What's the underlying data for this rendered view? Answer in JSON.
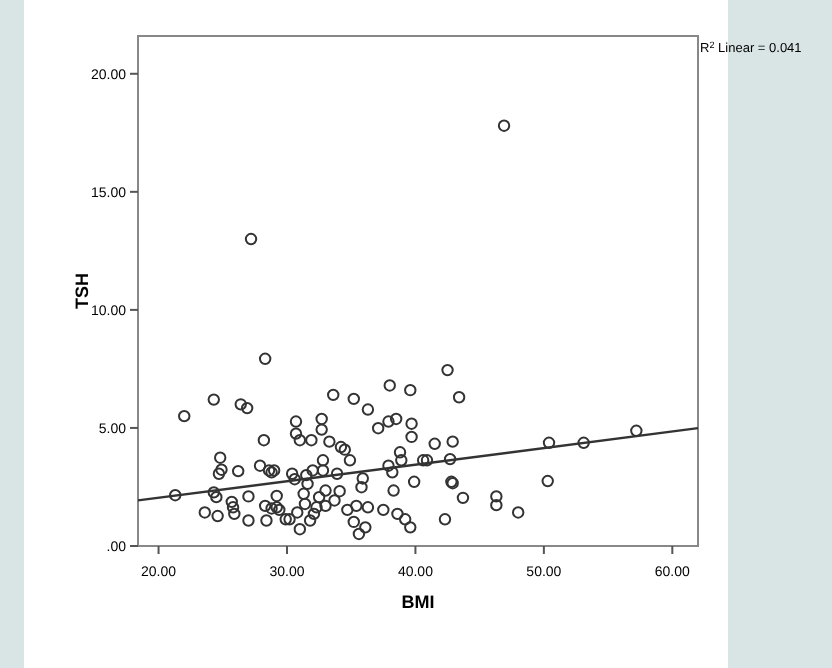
{
  "chart_data": {
    "type": "scatter",
    "xlabel": "BMI",
    "ylabel": "TSH",
    "xlim": [
      18.4,
      62
    ],
    "ylim": [
      0,
      21.6
    ],
    "xticks": [
      {
        "value": 20,
        "label": "20.00"
      },
      {
        "value": 30,
        "label": "30.00"
      },
      {
        "value": 40,
        "label": "40.00"
      },
      {
        "value": 50,
        "label": "50.00"
      },
      {
        "value": 60,
        "label": "60.00"
      }
    ],
    "yticks": [
      {
        "value": 0,
        "label": ".00"
      },
      {
        "value": 5,
        "label": "5.00"
      },
      {
        "value": 10,
        "label": "10.00"
      },
      {
        "value": 15,
        "label": "15.00"
      },
      {
        "value": 20,
        "label": "20.00"
      }
    ],
    "grid": false,
    "marker": "circle",
    "annotations": [
      "R$^{2}$ Linear = 0.041"
    ],
    "series": [
      {
        "color": "#333333",
        "x": [
          21.3,
          22.0,
          23.6,
          24.3,
          24.3,
          24.5,
          24.6,
          24.7,
          24.8,
          24.9,
          25.7,
          25.8,
          25.9,
          26.2,
          26.4,
          26.9,
          27.0,
          27.0,
          27.2,
          27.9,
          28.2,
          28.3,
          28.3,
          28.4,
          28.6,
          28.8,
          29.0,
          28.8,
          29.2,
          29.2,
          29.4,
          29.9,
          30.2,
          30.4,
          30.6,
          30.7,
          30.7,
          30.8,
          31.0,
          31.0,
          31.3,
          31.4,
          31.5,
          31.6,
          31.8,
          31.9,
          32.0,
          32.1,
          32.3,
          32.5,
          32.7,
          32.7,
          32.8,
          32.8,
          33.0,
          33.0,
          33.3,
          33.6,
          33.7,
          33.9,
          34.1,
          34.2,
          34.5,
          34.7,
          34.9,
          35.2,
          35.2,
          35.4,
          35.6,
          35.8,
          35.9,
          36.1,
          36.3,
          36.3,
          37.1,
          37.5,
          37.9,
          37.9,
          38.0,
          38.2,
          38.3,
          38.5,
          38.6,
          38.8,
          38.9,
          39.2,
          39.6,
          39.6,
          39.7,
          39.7,
          39.9,
          40.6,
          40.9,
          41.5,
          42.3,
          42.5,
          42.7,
          42.8,
          42.9,
          43.4,
          42.9,
          43.7,
          46.3,
          46.3,
          48.0,
          50.4,
          50.3,
          53.1,
          57.2,
          46.9
        ],
        "values": [
          2.15,
          5.5,
          1.42,
          6.2,
          2.27,
          2.07,
          1.27,
          3.06,
          3.74,
          3.23,
          1.87,
          1.64,
          1.36,
          3.17,
          6.0,
          5.84,
          2.1,
          1.08,
          13.0,
          3.4,
          4.48,
          7.93,
          1.7,
          1.08,
          3.2,
          3.12,
          3.2,
          1.59,
          2.12,
          1.64,
          1.53,
          1.13,
          1.13,
          3.06,
          2.83,
          5.27,
          4.76,
          1.42,
          4.48,
          0.71,
          2.21,
          1.78,
          3.0,
          2.63,
          1.08,
          4.48,
          3.2,
          1.36,
          1.64,
          2.07,
          5.38,
          4.93,
          3.63,
          3.2,
          2.35,
          1.7,
          4.42,
          6.4,
          1.93,
          3.06,
          2.32,
          4.19,
          4.08,
          1.53,
          3.63,
          6.23,
          1.02,
          1.7,
          0.51,
          2.49,
          2.86,
          0.79,
          1.64,
          5.78,
          4.99,
          1.53,
          3.4,
          5.27,
          6.8,
          3.12,
          2.35,
          5.38,
          1.36,
          3.97,
          3.63,
          1.13,
          6.6,
          0.79,
          5.18,
          4.62,
          2.72,
          3.63,
          3.63,
          4.33,
          1.13,
          7.45,
          3.68,
          2.72,
          4.42,
          6.3,
          2.66,
          2.04,
          2.1,
          1.73,
          1.42,
          4.37,
          2.75,
          4.37,
          4.88,
          17.8
        ]
      },
      {
        "type": "line",
        "marker": "none",
        "color": "#333333",
        "x": [
          18.4,
          62
        ],
        "values": [
          1.93,
          4.99
        ]
      }
    ]
  }
}
